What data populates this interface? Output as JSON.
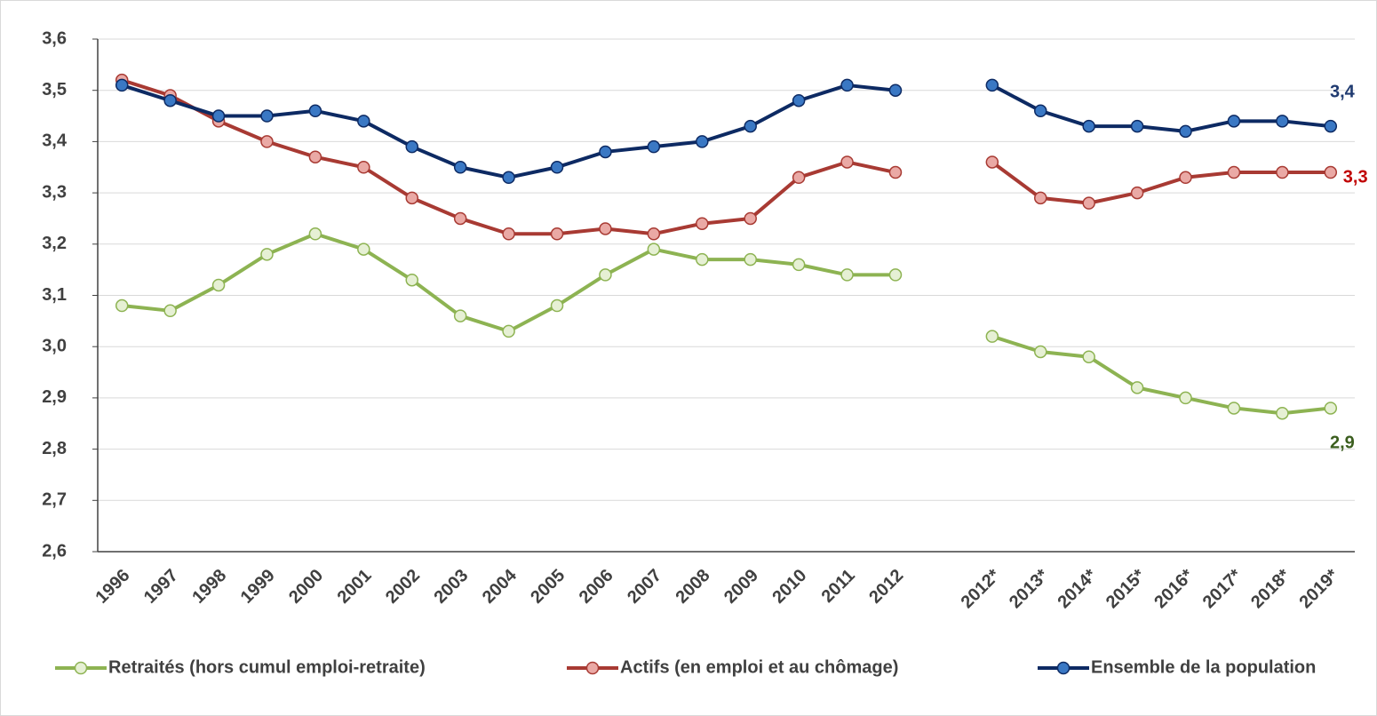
{
  "chart_data": {
    "type": "line",
    "categories": [
      "1996",
      "1997",
      "1998",
      "1999",
      "2000",
      "2001",
      "2002",
      "2003",
      "2004",
      "2005",
      "2006",
      "2007",
      "2008",
      "2009",
      "2010",
      "2011",
      "2012",
      null,
      "2012*",
      "2013*",
      "2014*",
      "2015*",
      "2016*",
      "2017*",
      "2018*",
      "2019*"
    ],
    "series": [
      {
        "name": "Retraités (hors cumul emploi-retraite)",
        "color": "#8db352",
        "marker_color": "#e6f0d4",
        "label_color": "#3b5e1e",
        "values": [
          3.08,
          3.07,
          3.12,
          3.18,
          3.22,
          3.19,
          3.13,
          3.06,
          3.03,
          3.08,
          3.14,
          3.19,
          3.17,
          3.17,
          3.16,
          3.14,
          3.14,
          null,
          3.02,
          2.99,
          2.98,
          2.92,
          2.9,
          2.88,
          2.87,
          2.88
        ],
        "value_labels": [
          null,
          null,
          null,
          null,
          null,
          null,
          null,
          null,
          null,
          null,
          null,
          null,
          null,
          null,
          null,
          null,
          null,
          null,
          null,
          null,
          null,
          null,
          null,
          null,
          null,
          "2,9"
        ]
      },
      {
        "name": "Actifs (en emploi et au chômage)",
        "color": "#a83a33",
        "marker_color": "#eaa9a5",
        "label_color": "#c00000",
        "values": [
          3.52,
          3.49,
          3.44,
          3.4,
          3.37,
          3.35,
          3.29,
          3.25,
          3.22,
          3.22,
          3.23,
          3.22,
          3.24,
          3.25,
          3.33,
          3.36,
          3.34,
          null,
          3.36,
          3.29,
          3.28,
          3.3,
          3.33,
          3.34,
          3.34,
          3.34
        ],
        "value_labels": [
          null,
          null,
          null,
          null,
          null,
          null,
          null,
          null,
          null,
          null,
          null,
          null,
          null,
          null,
          null,
          null,
          null,
          null,
          null,
          null,
          null,
          null,
          null,
          null,
          null,
          "3,3"
        ]
      },
      {
        "name": "Ensemble de la population",
        "color": "#0d2a63",
        "marker_color": "#3a78c4",
        "label_color": "#1f3a70",
        "values": [
          3.51,
          3.48,
          3.45,
          3.45,
          3.46,
          3.44,
          3.39,
          3.35,
          3.33,
          3.35,
          3.38,
          3.39,
          3.4,
          3.43,
          3.48,
          3.51,
          3.5,
          null,
          3.51,
          3.46,
          3.43,
          3.43,
          3.42,
          3.44,
          3.44,
          3.43
        ],
        "value_labels": [
          null,
          null,
          null,
          null,
          null,
          null,
          null,
          null,
          null,
          null,
          null,
          null,
          null,
          null,
          null,
          null,
          null,
          null,
          null,
          null,
          null,
          null,
          null,
          null,
          null,
          "3,4"
        ]
      }
    ],
    "ylim": [
      2.6,
      3.6
    ],
    "yticks": [
      {
        "value": 2.6,
        "label": "2,6"
      },
      {
        "value": 2.7,
        "label": "2,7"
      },
      {
        "value": 2.8,
        "label": "2,8"
      },
      {
        "value": 2.9,
        "label": "2,9"
      },
      {
        "value": 3.0,
        "label": "3,0"
      },
      {
        "value": 3.1,
        "label": "3,1"
      },
      {
        "value": 3.2,
        "label": "3,2"
      },
      {
        "value": 3.3,
        "label": "3,3"
      },
      {
        "value": 3.4,
        "label": "3,4"
      },
      {
        "value": 3.5,
        "label": "3,5"
      },
      {
        "value": 3.6,
        "label": "3,6"
      }
    ],
    "grid": true,
    "legend": "bottom"
  }
}
